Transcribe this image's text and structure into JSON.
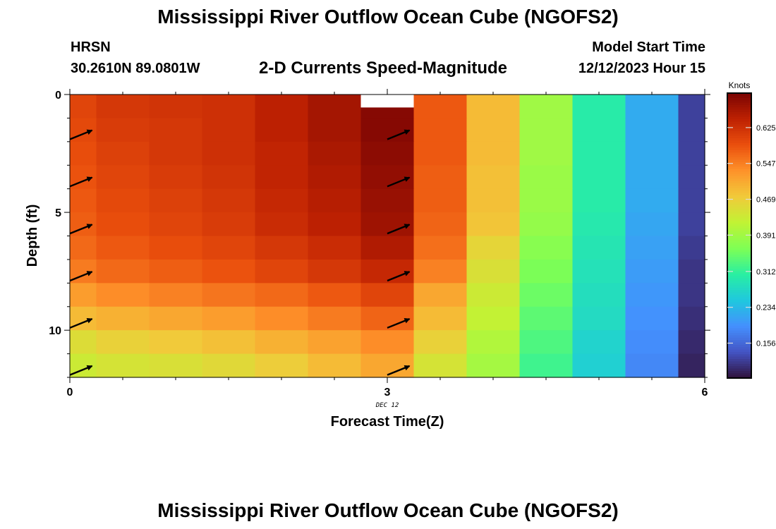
{
  "header": {
    "title": "Mississippi River Outflow Ocean Cube (NGOFS2)",
    "station": "HRSN",
    "coords": "30.2610N  89.0801W",
    "subtitle": "2-D Currents Speed-Magnitude",
    "start_label": "Model Start Time",
    "start_value": "12/12/2023 Hour 15"
  },
  "footer": {
    "title": "Mississippi River Outflow Ocean Cube (NGOFS2)"
  },
  "chart_data": {
    "type": "heatmap",
    "xlabel": "Forecast Time(Z)",
    "ylabel": "Depth (ft)",
    "x_date_label": "DEC 12",
    "xlim": [
      0,
      6
    ],
    "ylim": [
      12,
      0
    ],
    "x_ticks": [
      0,
      3,
      6
    ],
    "y_ticks": [
      0,
      5,
      10
    ],
    "x_edges": [
      0,
      0.25,
      0.75,
      1.25,
      1.75,
      2.25,
      2.75,
      3.25,
      3.75,
      4.25,
      4.75,
      5.25,
      5.75,
      6
    ],
    "y_edges": [
      0,
      1,
      2,
      3,
      4,
      5,
      6,
      7,
      8,
      9,
      10,
      11,
      12
    ],
    "blank_region": {
      "x": [
        2.75,
        3.25
      ],
      "y": [
        0,
        0.55
      ]
    },
    "values": [
      [
        0.6,
        0.615,
        0.62,
        0.625,
        0.645,
        0.665,
        0.69,
        0.58,
        0.49,
        0.39,
        0.3,
        0.22,
        0.12
      ],
      [
        0.595,
        0.61,
        0.615,
        0.625,
        0.645,
        0.665,
        0.69,
        0.58,
        0.49,
        0.39,
        0.3,
        0.22,
        0.12
      ],
      [
        0.59,
        0.605,
        0.615,
        0.625,
        0.64,
        0.66,
        0.685,
        0.58,
        0.49,
        0.39,
        0.3,
        0.22,
        0.12
      ],
      [
        0.585,
        0.6,
        0.61,
        0.62,
        0.64,
        0.655,
        0.68,
        0.575,
        0.485,
        0.385,
        0.3,
        0.22,
        0.12
      ],
      [
        0.58,
        0.595,
        0.605,
        0.615,
        0.635,
        0.65,
        0.675,
        0.575,
        0.485,
        0.385,
        0.3,
        0.22,
        0.12
      ],
      [
        0.575,
        0.59,
        0.6,
        0.61,
        0.63,
        0.645,
        0.67,
        0.57,
        0.48,
        0.38,
        0.295,
        0.215,
        0.12
      ],
      [
        0.565,
        0.58,
        0.59,
        0.6,
        0.615,
        0.63,
        0.655,
        0.56,
        0.46,
        0.37,
        0.29,
        0.21,
        0.115
      ],
      [
        0.55,
        0.565,
        0.575,
        0.585,
        0.6,
        0.615,
        0.635,
        0.545,
        0.445,
        0.36,
        0.285,
        0.205,
        0.11
      ],
      [
        0.52,
        0.535,
        0.545,
        0.555,
        0.565,
        0.58,
        0.6,
        0.51,
        0.43,
        0.35,
        0.28,
        0.2,
        0.11
      ],
      [
        0.49,
        0.5,
        0.51,
        0.52,
        0.535,
        0.55,
        0.57,
        0.49,
        0.42,
        0.34,
        0.275,
        0.195,
        0.105
      ],
      [
        0.45,
        0.465,
        0.475,
        0.485,
        0.5,
        0.515,
        0.535,
        0.465,
        0.405,
        0.33,
        0.265,
        0.19,
        0.1
      ],
      [
        0.43,
        0.44,
        0.445,
        0.455,
        0.47,
        0.49,
        0.51,
        0.44,
        0.395,
        0.32,
        0.26,
        0.185,
        0.095
      ]
    ],
    "vectors": {
      "x": [
        0,
        3
      ],
      "y": [
        1.75,
        3.75,
        5.75,
        7.75,
        9.75,
        11.75
      ],
      "direction_deg": 68
    },
    "colorbar": {
      "label": "Knots",
      "range": [
        0.08,
        0.7
      ],
      "tick_labels": [
        "0.625",
        "0.547",
        "0.469",
        "0.391",
        "0.312",
        "0.234",
        "0.156"
      ],
      "stops": [
        "#30123b",
        "#4454c4",
        "#4490fe",
        "#1fc8de",
        "#29efa2",
        "#7eff55",
        "#c1f334",
        "#f1ca3a",
        "#fe922a",
        "#ea4f0d",
        "#be2102",
        "#7a0403"
      ]
    }
  }
}
